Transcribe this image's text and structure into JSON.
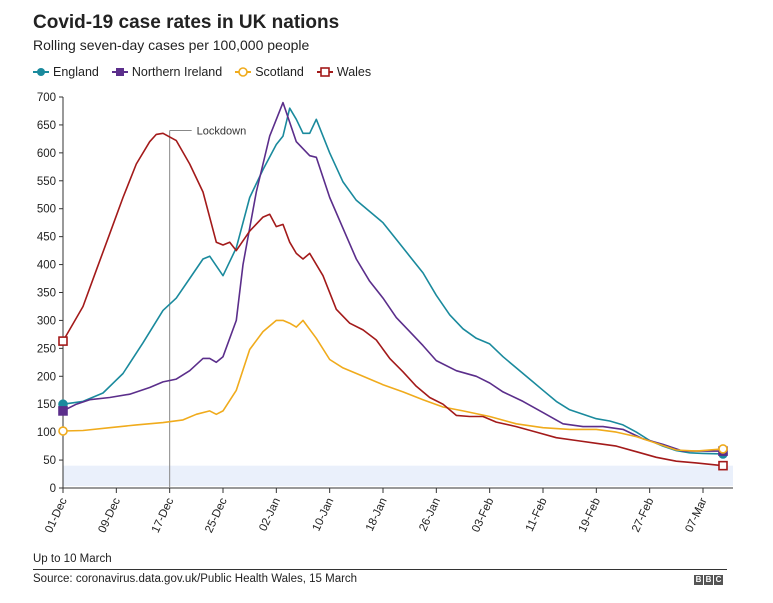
{
  "title": "Covid-19 case rates in UK nations",
  "subtitle": "Rolling seven-day cases per 100,000 people",
  "footnote": "Up to 10 March",
  "source": "Source: coronavirus.data.gov.uk/Public Health Wales, 15 March",
  "logo": [
    "B",
    "B",
    "C"
  ],
  "chart_data": {
    "type": "line",
    "title": "Covid-19 case rates in UK nations",
    "subtitle": "Rolling seven-day cases per 100,000 people",
    "xlabel": "",
    "ylabel": "",
    "ylim": [
      0,
      700
    ],
    "yticks": [
      0,
      50,
      100,
      150,
      200,
      250,
      300,
      350,
      400,
      450,
      500,
      550,
      600,
      650,
      700
    ],
    "x_start": "2020-12-01",
    "x_end": "2021-03-10",
    "x_ticks": [
      {
        "date": "2020-12-01",
        "label": "01-Dec"
      },
      {
        "date": "2020-12-09",
        "label": "09-Dec"
      },
      {
        "date": "2020-12-17",
        "label": "17-Dec"
      },
      {
        "date": "2020-12-25",
        "label": "25-Dec"
      },
      {
        "date": "2021-01-02",
        "label": "02-Jan"
      },
      {
        "date": "2021-01-10",
        "label": "10-Jan"
      },
      {
        "date": "2021-01-18",
        "label": "18-Jan"
      },
      {
        "date": "2021-01-26",
        "label": "26-Jan"
      },
      {
        "date": "2021-02-03",
        "label": "03-Feb"
      },
      {
        "date": "2021-02-11",
        "label": "11-Feb"
      },
      {
        "date": "2021-02-19",
        "label": "19-Feb"
      },
      {
        "date": "2021-02-27",
        "label": "27-Feb"
      },
      {
        "date": "2021-03-07",
        "label": "07-Mar"
      }
    ],
    "annotations": [
      {
        "label": "Lockdown",
        "date": "2020-12-17"
      }
    ],
    "legend_position": "top-left",
    "grid": false,
    "series": [
      {
        "name": "England",
        "color": "#1a8a9d",
        "marker": "circle",
        "filled": true,
        "points": [
          [
            "2020-12-01",
            150
          ],
          [
            "2020-12-04",
            155
          ],
          [
            "2020-12-07",
            170
          ],
          [
            "2020-12-10",
            205
          ],
          [
            "2020-12-13",
            260
          ],
          [
            "2020-12-16",
            318
          ],
          [
            "2020-12-18",
            340
          ],
          [
            "2020-12-20",
            375
          ],
          [
            "2020-12-22",
            410
          ],
          [
            "2020-12-23",
            415
          ],
          [
            "2020-12-25",
            380
          ],
          [
            "2020-12-27",
            430
          ],
          [
            "2020-12-29",
            520
          ],
          [
            "2020-12-31",
            570
          ],
          [
            "2021-01-02",
            615
          ],
          [
            "2021-01-03",
            630
          ],
          [
            "2021-01-04",
            680
          ],
          [
            "2021-01-05",
            660
          ],
          [
            "2021-01-06",
            635
          ],
          [
            "2021-01-07",
            635
          ],
          [
            "2021-01-08",
            660
          ],
          [
            "2021-01-10",
            600
          ],
          [
            "2021-01-12",
            548
          ],
          [
            "2021-01-14",
            515
          ],
          [
            "2021-01-16",
            495
          ],
          [
            "2021-01-18",
            475
          ],
          [
            "2021-01-20",
            445
          ],
          [
            "2021-01-22",
            415
          ],
          [
            "2021-01-24",
            385
          ],
          [
            "2021-01-26",
            345
          ],
          [
            "2021-01-28",
            310
          ],
          [
            "2021-01-30",
            285
          ],
          [
            "2021-02-01",
            268
          ],
          [
            "2021-02-03",
            258
          ],
          [
            "2021-02-05",
            235
          ],
          [
            "2021-02-07",
            215
          ],
          [
            "2021-02-09",
            195
          ],
          [
            "2021-02-11",
            175
          ],
          [
            "2021-02-13",
            155
          ],
          [
            "2021-02-15",
            140
          ],
          [
            "2021-02-17",
            132
          ],
          [
            "2021-02-19",
            124
          ],
          [
            "2021-02-21",
            120
          ],
          [
            "2021-02-23",
            113
          ],
          [
            "2021-02-25",
            100
          ],
          [
            "2021-02-27",
            85
          ],
          [
            "2021-03-01",
            75
          ],
          [
            "2021-03-03",
            67
          ],
          [
            "2021-03-05",
            63
          ],
          [
            "2021-03-07",
            62
          ],
          [
            "2021-03-10",
            61
          ]
        ]
      },
      {
        "name": "Northern Ireland",
        "color": "#5b2e8b",
        "marker": "square",
        "filled": true,
        "points": [
          [
            "2020-12-01",
            138
          ],
          [
            "2020-12-03",
            150
          ],
          [
            "2020-12-05",
            158
          ],
          [
            "2020-12-08",
            162
          ],
          [
            "2020-12-11",
            168
          ],
          [
            "2020-12-14",
            180
          ],
          [
            "2020-12-16",
            190
          ],
          [
            "2020-12-18",
            195
          ],
          [
            "2020-12-20",
            210
          ],
          [
            "2020-12-22",
            232
          ],
          [
            "2020-12-23",
            232
          ],
          [
            "2020-12-24",
            225
          ],
          [
            "2020-12-25",
            235
          ],
          [
            "2020-12-27",
            300
          ],
          [
            "2020-12-28",
            400
          ],
          [
            "2020-12-30",
            530
          ],
          [
            "2021-01-01",
            630
          ],
          [
            "2021-01-03",
            690
          ],
          [
            "2021-01-05",
            620
          ],
          [
            "2021-01-07",
            595
          ],
          [
            "2021-01-08",
            592
          ],
          [
            "2021-01-10",
            520
          ],
          [
            "2021-01-12",
            465
          ],
          [
            "2021-01-14",
            410
          ],
          [
            "2021-01-16",
            370
          ],
          [
            "2021-01-18",
            340
          ],
          [
            "2021-01-20",
            305
          ],
          [
            "2021-01-22",
            280
          ],
          [
            "2021-01-24",
            255
          ],
          [
            "2021-01-26",
            228
          ],
          [
            "2021-01-29",
            210
          ],
          [
            "2021-02-01",
            200
          ],
          [
            "2021-02-03",
            188
          ],
          [
            "2021-02-05",
            172
          ],
          [
            "2021-02-08",
            155
          ],
          [
            "2021-02-11",
            135
          ],
          [
            "2021-02-14",
            115
          ],
          [
            "2021-02-17",
            110
          ],
          [
            "2021-02-20",
            110
          ],
          [
            "2021-02-23",
            105
          ],
          [
            "2021-02-26",
            88
          ],
          [
            "2021-03-01",
            78
          ],
          [
            "2021-03-04",
            66
          ],
          [
            "2021-03-07",
            66
          ],
          [
            "2021-03-10",
            66
          ]
        ]
      },
      {
        "name": "Scotland",
        "color": "#f0ab1c",
        "marker": "circle",
        "filled": false,
        "points": [
          [
            "2020-12-01",
            102
          ],
          [
            "2020-12-04",
            103
          ],
          [
            "2020-12-08",
            108
          ],
          [
            "2020-12-12",
            113
          ],
          [
            "2020-12-16",
            117
          ],
          [
            "2020-12-19",
            122
          ],
          [
            "2020-12-21",
            132
          ],
          [
            "2020-12-23",
            138
          ],
          [
            "2020-12-24",
            132
          ],
          [
            "2020-12-25",
            138
          ],
          [
            "2020-12-27",
            175
          ],
          [
            "2020-12-29",
            248
          ],
          [
            "2020-12-31",
            280
          ],
          [
            "2021-01-02",
            300
          ],
          [
            "2021-01-03",
            300
          ],
          [
            "2021-01-04",
            295
          ],
          [
            "2021-01-05",
            288
          ],
          [
            "2021-01-06",
            300
          ],
          [
            "2021-01-08",
            268
          ],
          [
            "2021-01-10",
            230
          ],
          [
            "2021-01-12",
            215
          ],
          [
            "2021-01-15",
            200
          ],
          [
            "2021-01-18",
            185
          ],
          [
            "2021-01-21",
            172
          ],
          [
            "2021-01-24",
            158
          ],
          [
            "2021-01-27",
            145
          ],
          [
            "2021-01-30",
            138
          ],
          [
            "2021-02-03",
            128
          ],
          [
            "2021-02-07",
            115
          ],
          [
            "2021-02-11",
            108
          ],
          [
            "2021-02-15",
            105
          ],
          [
            "2021-02-19",
            105
          ],
          [
            "2021-02-22",
            100
          ],
          [
            "2021-02-25",
            92
          ],
          [
            "2021-02-28",
            80
          ],
          [
            "2021-03-03",
            68
          ],
          [
            "2021-03-06",
            66
          ],
          [
            "2021-03-10",
            70
          ]
        ]
      },
      {
        "name": "Wales",
        "color": "#a31a1a",
        "marker": "square",
        "filled": false,
        "points": [
          [
            "2020-12-01",
            263
          ],
          [
            "2020-12-04",
            325
          ],
          [
            "2020-12-06",
            390
          ],
          [
            "2020-12-08",
            455
          ],
          [
            "2020-12-10",
            520
          ],
          [
            "2020-12-12",
            580
          ],
          [
            "2020-12-14",
            620
          ],
          [
            "2020-12-15",
            633
          ],
          [
            "2020-12-16",
            635
          ],
          [
            "2020-12-18",
            622
          ],
          [
            "2020-12-20",
            580
          ],
          [
            "2020-12-22",
            530
          ],
          [
            "2020-12-24",
            440
          ],
          [
            "2020-12-25",
            435
          ],
          [
            "2020-12-26",
            440
          ],
          [
            "2020-12-27",
            425
          ],
          [
            "2020-12-29",
            460
          ],
          [
            "2020-12-31",
            485
          ],
          [
            "2021-01-01",
            490
          ],
          [
            "2021-01-02",
            468
          ],
          [
            "2021-01-03",
            472
          ],
          [
            "2021-01-04",
            440
          ],
          [
            "2021-01-05",
            420
          ],
          [
            "2021-01-06",
            410
          ],
          [
            "2021-01-07",
            420
          ],
          [
            "2021-01-09",
            380
          ],
          [
            "2021-01-11",
            320
          ],
          [
            "2021-01-13",
            295
          ],
          [
            "2021-01-15",
            283
          ],
          [
            "2021-01-17",
            265
          ],
          [
            "2021-01-19",
            232
          ],
          [
            "2021-01-21",
            208
          ],
          [
            "2021-01-23",
            182
          ],
          [
            "2021-01-25",
            162
          ],
          [
            "2021-01-27",
            150
          ],
          [
            "2021-01-29",
            130
          ],
          [
            "2021-01-31",
            128
          ],
          [
            "2021-02-02",
            128
          ],
          [
            "2021-02-04",
            118
          ],
          [
            "2021-02-07",
            110
          ],
          [
            "2021-02-10",
            100
          ],
          [
            "2021-02-13",
            90
          ],
          [
            "2021-02-16",
            85
          ],
          [
            "2021-02-19",
            80
          ],
          [
            "2021-02-22",
            75
          ],
          [
            "2021-02-25",
            65
          ],
          [
            "2021-02-28",
            55
          ],
          [
            "2021-03-03",
            48
          ],
          [
            "2021-03-06",
            45
          ],
          [
            "2021-03-10",
            40
          ]
        ]
      }
    ]
  }
}
